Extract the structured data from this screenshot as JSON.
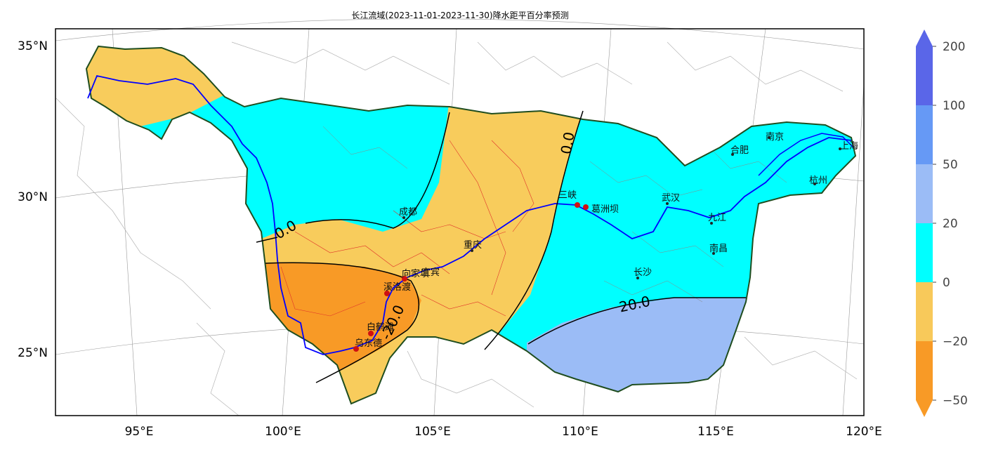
{
  "title": "长江流域(2023-11-01-2023-11-30)降水距平百分率预测",
  "axes": {
    "lat_labels": [
      "35°N",
      "30°N",
      "25°N"
    ],
    "lon_labels": [
      "95°E",
      "100°E",
      "105°E",
      "110°E",
      "115°E",
      "120°E"
    ]
  },
  "contour_labels": [
    "0.0",
    "0.0",
    "20.0",
    "-20.0"
  ],
  "cities": [
    "成都",
    "重庆",
    "宜宾",
    "三峡",
    "葛洲坝",
    "武汉",
    "九江",
    "南昌",
    "长沙",
    "合肥",
    "南京",
    "上海",
    "杭州",
    "向家坝",
    "溪洛渡",
    "白鹤滩",
    "乌东德"
  ],
  "colorbar": {
    "tick_labels": [
      "200",
      "100",
      "50",
      "20",
      "0",
      "−20",
      "−50"
    ],
    "colors": [
      "#5a66e8",
      "#6699f5",
      "#9bbcf6",
      "#00ffff",
      "#f8c95a",
      "#f89a26"
    ]
  },
  "colors": {
    "cyan": "#00ffff",
    "light_orange": "#f8cc5c",
    "dark_orange": "#f89a26",
    "light_blue": "#9bbcf6",
    "river": "#0000ff",
    "boundary": "#1f4d1f"
  }
}
